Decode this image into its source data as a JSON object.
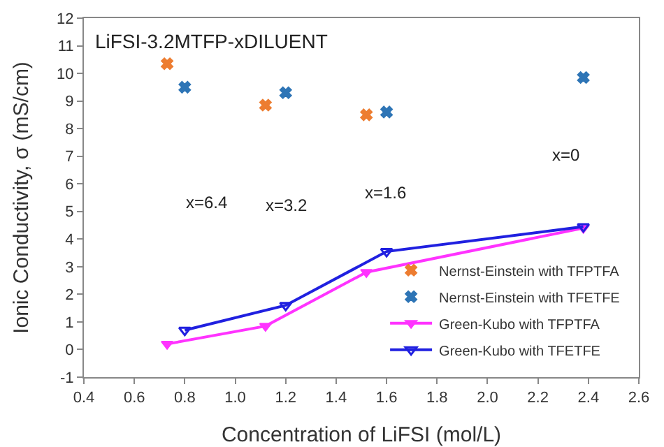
{
  "chart_data": {
    "type": "scatter",
    "title": "LiFSI-3.2MTFP-xDILUENT",
    "xlabel": "Concentration of LiFSI (mol/L)",
    "ylabel": "Ionic Conductivity, σ (mS/cm)",
    "xlim": [
      0.4,
      2.6
    ],
    "xticks": [
      {
        "value": 0.4,
        "label": "0.4"
      },
      {
        "value": 0.6,
        "label": "0.6"
      },
      {
        "value": 0.8,
        "label": "0.8"
      },
      {
        "value": 1.0,
        "label": "1.0"
      },
      {
        "value": 1.2,
        "label": "1.2"
      },
      {
        "value": 1.4,
        "label": "1.4"
      },
      {
        "value": 1.6,
        "label": "1.6"
      },
      {
        "value": 1.8,
        "label": "1.8"
      },
      {
        "value": 2.0,
        "label": "2.0"
      },
      {
        "value": 2.2,
        "label": "2.2"
      },
      {
        "value": 2.4,
        "label": "2.4"
      },
      {
        "value": 2.6,
        "label": "2.6"
      }
    ],
    "ylim": [
      -1,
      12
    ],
    "yticks": [
      -1,
      0,
      1,
      2,
      3,
      4,
      5,
      6,
      7,
      8,
      9,
      10,
      11,
      12
    ],
    "grid": false,
    "legend": "bottom right",
    "series": [
      {
        "name": "Nernst-Einstein with TFPTFA",
        "marker": "cross",
        "color": "#ed7d31",
        "x": [
          0.73,
          1.12,
          1.52
        ],
        "values": [
          10.35,
          8.85,
          8.5
        ]
      },
      {
        "name": "Nernst-Einstein with TFETFE",
        "marker": "cross",
        "color": "#2e75b6",
        "x": [
          0.8,
          1.2,
          1.6,
          2.38
        ],
        "values": [
          9.5,
          9.3,
          8.6,
          9.85
        ]
      },
      {
        "name": "Green-Kubo with TFPTFA",
        "type": "line",
        "marker": "triangle",
        "color": "#ff33ff",
        "x": [
          0.73,
          1.12,
          1.52,
          2.38
        ],
        "values": [
          0.2,
          0.85,
          2.8,
          4.4
        ]
      },
      {
        "name": "Green-Kubo with TFETFE",
        "type": "line",
        "marker": "triangle",
        "color": "#2020e0",
        "x": [
          0.8,
          1.2,
          1.6,
          2.38
        ],
        "values": [
          0.7,
          1.6,
          3.55,
          4.45
        ]
      }
    ],
    "annotations": [
      "x=6.4",
      "x=3.2",
      "x=1.6",
      "x=0"
    ]
  }
}
